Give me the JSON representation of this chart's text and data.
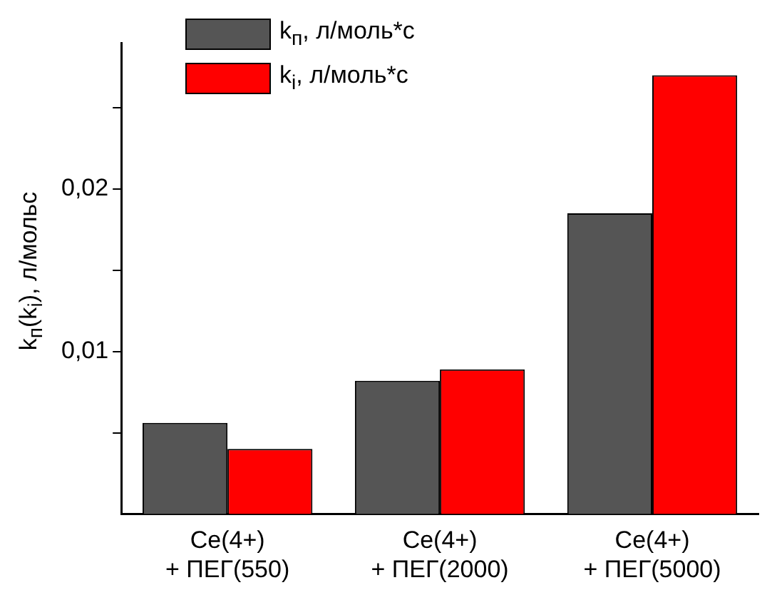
{
  "chart_data": {
    "type": "bar",
    "ylabel": "k$_{п}$(k$_{i}$), л/мольс",
    "categories": [
      "Ce(4+)\n+ ПЕГ(550)",
      "Ce(4+)\n+ ПЕГ(2000)",
      "Ce(4+)\n+ ПЕГ(5000)"
    ],
    "series": [
      {
        "name": "k$_{п}$, л/моль*с",
        "color": "#555555",
        "values": [
          0.0056,
          0.0082,
          0.0185
        ]
      },
      {
        "name": "k$_{i}$, л/моль*с",
        "color": "#ff0000",
        "values": [
          0.004,
          0.0089,
          0.027
        ]
      }
    ],
    "ylim": [
      0,
      0.029
    ],
    "yticks": [
      {
        "value": 0.005,
        "label": null
      },
      {
        "value": 0.01,
        "label": "0,01"
      },
      {
        "value": 0.015,
        "label": null
      },
      {
        "value": 0.02,
        "label": "0,02"
      },
      {
        "value": 0.025,
        "label": null
      }
    ],
    "grid": false,
    "legend": "top left"
  }
}
